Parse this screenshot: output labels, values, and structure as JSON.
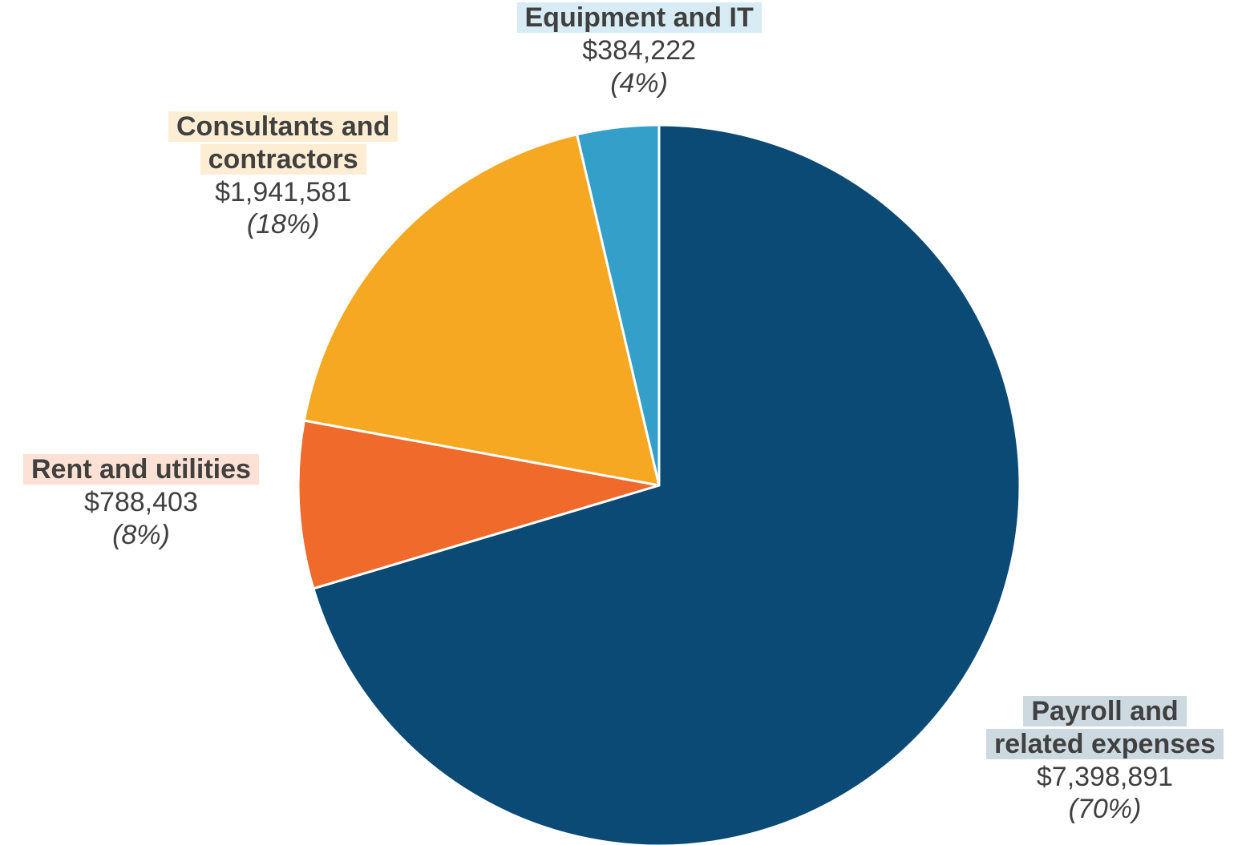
{
  "chart_data": {
    "type": "pie",
    "slices": [
      {
        "label_lines": [
          "Payroll and",
          "related expenses"
        ],
        "value": 7398891,
        "amount": "$7,398,891",
        "percent": "(70%)",
        "color": "#0b4a75",
        "label_bg": "#cdd9e1"
      },
      {
        "label_lines": [
          "Rent and utilities"
        ],
        "value": 788403,
        "amount": "$788,403",
        "percent": "(8%)",
        "color": "#f06a2b",
        "label_bg": "#fce1d4"
      },
      {
        "label_lines": [
          "Consultants and",
          "contractors"
        ],
        "value": 1941581,
        "amount": "$1,941,581",
        "percent": "(18%)",
        "color": "#f7a823",
        "label_bg": "#fdedd3"
      },
      {
        "label_lines": [
          "Equipment and IT"
        ],
        "value": 384222,
        "amount": "$384,222",
        "percent": "(4%)",
        "color": "#349fc8",
        "label_bg": "#d7ecf4"
      }
    ]
  }
}
